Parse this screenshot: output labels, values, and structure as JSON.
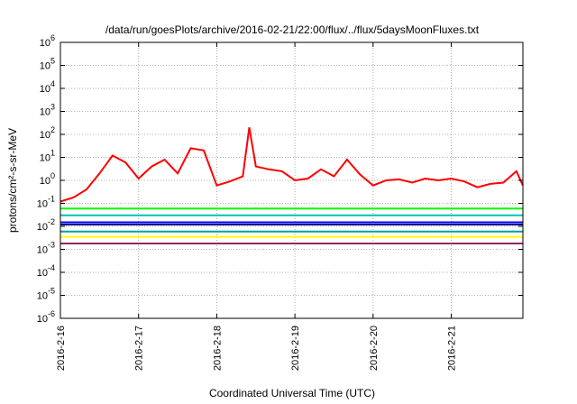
{
  "chart_data": {
    "type": "line",
    "title": "/data/run/goesPlots/archive/2016-02-21/22:00/flux/../flux/5daysMoonFluxes.txt",
    "xlabel": "Coordinated Universal Time (UTC)",
    "ylabel": "protons/cm²-s-sr-MeV",
    "y_scale": "log",
    "ylim": [
      1e-06,
      1000000.0
    ],
    "xlim": [
      "2016-02-16",
      "2016-02-21 22:00"
    ],
    "grid": true,
    "legend": "none",
    "x_tick_labels": [
      "2016-2-16",
      "2016-2-17",
      "2016-2-18",
      "2016-2-19",
      "2016-2-20",
      "2016-2-21"
    ],
    "y_tick_labels": [
      {
        "base": "10",
        "exp": "6"
      },
      {
        "base": "10",
        "exp": "5"
      },
      {
        "base": "10",
        "exp": "4"
      },
      {
        "base": "10",
        "exp": "3"
      },
      {
        "base": "10",
        "exp": "2"
      },
      {
        "base": "10",
        "exp": "1"
      },
      {
        "base": "10",
        "exp": "0"
      },
      {
        "base": "10",
        "exp": "-1"
      },
      {
        "base": "10",
        "exp": "-2"
      },
      {
        "base": "10",
        "exp": "-3"
      },
      {
        "base": "10",
        "exp": "-4"
      },
      {
        "base": "10",
        "exp": "-5"
      },
      {
        "base": "10",
        "exp": "-6"
      }
    ],
    "series": [
      {
        "color": "#ff0000",
        "x": [
          "2016-02-16 00:00",
          "2016-02-16 04:00",
          "2016-02-16 08:00",
          "2016-02-16 12:00",
          "2016-02-16 16:00",
          "2016-02-16 20:00",
          "2016-02-17 00:00",
          "2016-02-17 04:00",
          "2016-02-17 08:00",
          "2016-02-17 12:00",
          "2016-02-17 16:00",
          "2016-02-17 20:00",
          "2016-02-18 00:00",
          "2016-02-18 04:00",
          "2016-02-18 08:00",
          "2016-02-18 10:00",
          "2016-02-18 12:00",
          "2016-02-18 16:00",
          "2016-02-18 20:00",
          "2016-02-19 00:00",
          "2016-02-19 04:00",
          "2016-02-19 08:00",
          "2016-02-19 12:00",
          "2016-02-19 16:00",
          "2016-02-19 20:00",
          "2016-02-20 00:00",
          "2016-02-20 04:00",
          "2016-02-20 08:00",
          "2016-02-20 12:00",
          "2016-02-20 16:00",
          "2016-02-20 20:00",
          "2016-02-21 00:00",
          "2016-02-21 04:00",
          "2016-02-21 08:00",
          "2016-02-21 12:00",
          "2016-02-21 16:00",
          "2016-02-21 20:00",
          "2016-02-21 22:00"
        ],
        "y": [
          0.12,
          0.18,
          0.4,
          2,
          12,
          6,
          1.2,
          4,
          8,
          2,
          25,
          20,
          0.6,
          0.9,
          1.5,
          200,
          4,
          3,
          2.5,
          1,
          1.2,
          3,
          1.5,
          8,
          1.8,
          0.6,
          1,
          1.1,
          0.8,
          1.2,
          1,
          1.2,
          0.9,
          0.5,
          0.7,
          0.8,
          2.5,
          0.6
        ]
      },
      {
        "color": "#00ff00",
        "x": [
          "2016-02-16",
          "2016-02-21 22:00"
        ],
        "y": [
          0.06,
          0.06
        ]
      },
      {
        "color": "#00c0c0",
        "x": [
          "2016-02-16",
          "2016-02-21 22:00"
        ],
        "y": [
          0.03,
          0.03
        ]
      },
      {
        "color": "#0000ff",
        "x": [
          "2016-02-16",
          "2016-02-21 22:00"
        ],
        "y": [
          0.015,
          0.015
        ]
      },
      {
        "color": "#00008b",
        "x": [
          "2016-02-16",
          "2016-02-21 22:00"
        ],
        "y": [
          0.012,
          0.012
        ]
      },
      {
        "color": "#00a0a0",
        "x": [
          "2016-02-16",
          "2016-02-21 22:00"
        ],
        "y": [
          0.006,
          0.006
        ]
      },
      {
        "color": "#ffff00",
        "x": [
          "2016-02-16",
          "2016-02-21 22:00"
        ],
        "y": [
          0.0035,
          0.0035
        ]
      },
      {
        "color": "#8b2a6b",
        "x": [
          "2016-02-16",
          "2016-02-21 22:00"
        ],
        "y": [
          0.0018,
          0.0018
        ]
      }
    ]
  }
}
